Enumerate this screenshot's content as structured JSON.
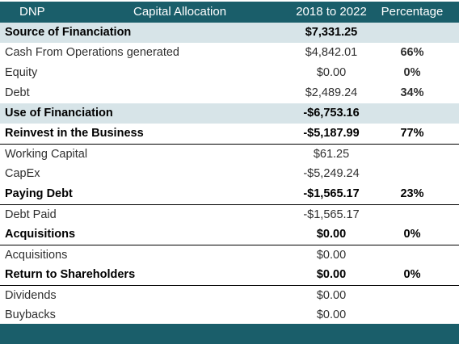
{
  "header": {
    "ticker": "DNP",
    "title": "Capital Allocation",
    "period": "2018 to 2022",
    "pct_label": "Percentage"
  },
  "rows": [
    {
      "label": "Source of Financiation",
      "value": "$7,331.25",
      "pct": ""
    },
    {
      "label": "Cash From Operations generated",
      "value": "$4,842.01",
      "pct": "66%"
    },
    {
      "label": "Equity",
      "value": "$0.00",
      "pct": "0%"
    },
    {
      "label": "Debt",
      "value": "$2,489.24",
      "pct": "34%"
    },
    {
      "label": "Use of Financiation",
      "value": "-$6,753.16",
      "pct": ""
    },
    {
      "label": "Reinvest in the Business",
      "value": "-$5,187.99",
      "pct": "77%"
    },
    {
      "label": "Working Capital",
      "value": "$61.25",
      "pct": ""
    },
    {
      "label": "CapEx",
      "value": "-$5,249.24",
      "pct": ""
    },
    {
      "label": "Paying Debt",
      "value": "-$1,565.17",
      "pct": "23%"
    },
    {
      "label": "Debt Paid",
      "value": "-$1,565.17",
      "pct": ""
    },
    {
      "label": "Acquisitions",
      "value": "$0.00",
      "pct": "0%"
    },
    {
      "label": "Acquisitions",
      "value": "$0.00",
      "pct": ""
    },
    {
      "label": "Return to Shareholders",
      "value": "$0.00",
      "pct": "0%"
    },
    {
      "label": "Dividends",
      "value": "$0.00",
      "pct": ""
    },
    {
      "label": "Buybacks",
      "value": "$0.00",
      "pct": ""
    }
  ]
}
